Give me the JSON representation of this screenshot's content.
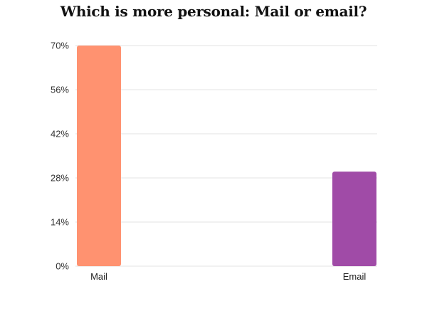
{
  "chart_data": {
    "type": "bar",
    "title": "Which is more personal: Mail or email?",
    "categories": [
      "Mail",
      "Email"
    ],
    "values": [
      70,
      30
    ],
    "colors": [
      "#FF9270",
      "#A04BA7"
    ],
    "y_ticks": [
      "0%",
      "14%",
      "28%",
      "42%",
      "56%",
      "70%"
    ],
    "y_tick_values": [
      0,
      14,
      28,
      42,
      56,
      70
    ],
    "ylim": [
      0,
      70
    ],
    "xlabel": "",
    "ylabel": "",
    "grid": true,
    "gridline_color": "#e3e3e3"
  }
}
